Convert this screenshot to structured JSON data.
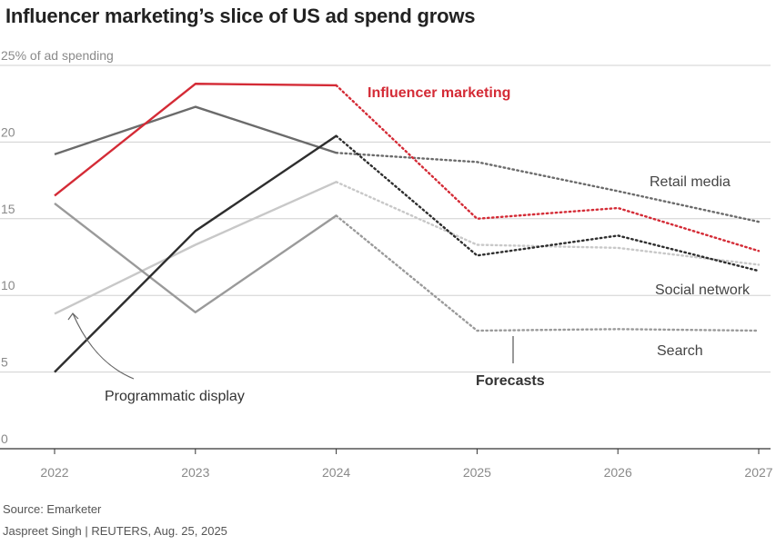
{
  "header": {
    "title": "Influencer marketing’s slice of US ad spend grows"
  },
  "footer": {
    "source": "Source: Emarketer",
    "credit": "Jaspreet Singh | REUTERS, Aug. 25, 2025"
  },
  "annotations": {
    "forecasts": "Forecasts"
  },
  "chart_data": {
    "type": "line",
    "title": "Influencer marketing’s slice of US ad spend grows",
    "ylabel": "% of ad spending",
    "ylim": [
      0,
      25
    ],
    "y_ticks": [
      0,
      5,
      10,
      15,
      20,
      25
    ],
    "y_tick_labels": [
      "0",
      "5",
      "10",
      "15",
      "20",
      "25% of ad spending"
    ],
    "x": [
      "2022",
      "2023",
      "2024",
      "2025",
      "2026",
      "2027"
    ],
    "forecast_from": "2024",
    "series": [
      {
        "name": "Influencer marketing",
        "color": "#d42b36",
        "values": [
          16.5,
          23.8,
          23.7,
          15.0,
          15.7,
          12.9
        ]
      },
      {
        "name": "Retail media",
        "color": "#6b6b6b",
        "values": [
          19.2,
          22.3,
          19.3,
          18.7,
          16.8,
          14.8
        ]
      },
      {
        "name": "Social network",
        "color": "#2e2e2e",
        "values": [
          5.0,
          14.2,
          20.4,
          12.6,
          13.9,
          11.6
        ]
      },
      {
        "name": "Search",
        "color": "#9a9a9a",
        "values": [
          16.0,
          8.9,
          15.2,
          7.7,
          7.8,
          7.7
        ]
      },
      {
        "name": "Programmatic display",
        "color": "#c8c8c8",
        "values": [
          8.8,
          13.3,
          17.4,
          13.3,
          13.1,
          12.0
        ]
      }
    ]
  }
}
